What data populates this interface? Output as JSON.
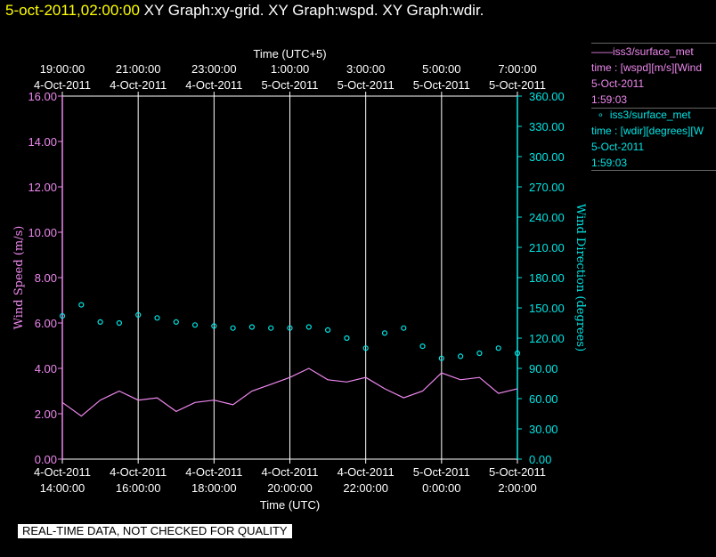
{
  "header": {
    "timestamp": "5-oct-2011,02:00:00",
    "titles": "XY Graph:xy-grid.  XY Graph:wspd.  XY Graph:wdir."
  },
  "legend": [
    {
      "marker": "——",
      "name": "iss3/surface_met",
      "desc": "time : [wspd][m/s][Wind",
      "date": "5-Oct-2011",
      "time": "1:59:03",
      "color": "#ee88ee"
    },
    {
      "marker": "∘",
      "name": "iss3/surface_met",
      "desc": "time : [wdir][degrees][W",
      "date": "5-Oct-2011",
      "time": "1:59:03",
      "color": "#00e5e5"
    }
  ],
  "qc_banner": "REAL-TIME DATA, NOT CHECKED FOR QUALITY",
  "chart_data": {
    "type": "line",
    "top_axis": {
      "label": "Time (UTC+5)",
      "ticks": [
        {
          "time": "19:00:00",
          "date": "4-Oct-2011"
        },
        {
          "time": "21:00:00",
          "date": "4-Oct-2011"
        },
        {
          "time": "23:00:00",
          "date": "4-Oct-2011"
        },
        {
          "time": "1:00:00",
          "date": "5-Oct-2011"
        },
        {
          "time": "3:00:00",
          "date": "5-Oct-2011"
        },
        {
          "time": "5:00:00",
          "date": "5-Oct-2011"
        },
        {
          "time": "7:00:00",
          "date": "5-Oct-2011"
        }
      ]
    },
    "bottom_axis": {
      "label": "Time (UTC)",
      "ticks": [
        {
          "date": "4-Oct-2011",
          "time": "14:00:00"
        },
        {
          "date": "4-Oct-2011",
          "time": "16:00:00"
        },
        {
          "date": "4-Oct-2011",
          "time": "18:00:00"
        },
        {
          "date": "4-Oct-2011",
          "time": "20:00:00"
        },
        {
          "date": "4-Oct-2011",
          "time": "22:00:00"
        },
        {
          "date": "5-Oct-2011",
          "time": "0:00:00"
        },
        {
          "date": "5-Oct-2011",
          "time": "2:00:00"
        }
      ],
      "range_utc": [
        "2011-10-04 14:00",
        "2011-10-05 02:00"
      ]
    },
    "left_axis": {
      "label": "Wind Speed (m/s)",
      "ylim": [
        0,
        16
      ],
      "ticks": [
        "0.00",
        "2.00",
        "4.00",
        "6.00",
        "8.00",
        "10.00",
        "12.00",
        "14.00",
        "16.00"
      ],
      "color": "#ee88ee"
    },
    "right_axis": {
      "label": "Wind Direction (degrees)",
      "ylim": [
        0,
        360
      ],
      "ticks": [
        "0.00",
        "30.00",
        "60.00",
        "90.00",
        "120.00",
        "150.00",
        "180.00",
        "210.00",
        "240.00",
        "270.00",
        "300.00",
        "330.00",
        "360.00"
      ],
      "color": "#00e5e5"
    },
    "grid": "vertical",
    "series": [
      {
        "name": "iss3/surface_met wspd",
        "style": "line",
        "color": "#ee88ee",
        "axis": "left",
        "x_utc": [
          "2011-10-04 14:00",
          "2011-10-04 14:30",
          "2011-10-04 15:00",
          "2011-10-04 15:30",
          "2011-10-04 16:00",
          "2011-10-04 16:30",
          "2011-10-04 17:00",
          "2011-10-04 17:30",
          "2011-10-04 18:00",
          "2011-10-04 18:30",
          "2011-10-04 19:00",
          "2011-10-04 19:30",
          "2011-10-04 20:00",
          "2011-10-04 20:30",
          "2011-10-04 21:00",
          "2011-10-04 21:30",
          "2011-10-04 22:00",
          "2011-10-04 22:30",
          "2011-10-04 23:00",
          "2011-10-04 23:30",
          "2011-10-05 00:00",
          "2011-10-05 00:30",
          "2011-10-05 01:00",
          "2011-10-05 01:30",
          "2011-10-05 02:00"
        ],
        "values": [
          2.5,
          1.9,
          2.6,
          3.0,
          2.6,
          2.7,
          2.1,
          2.5,
          2.6,
          2.4,
          3.0,
          3.3,
          3.6,
          4.0,
          3.5,
          3.4,
          3.6,
          3.1,
          2.7,
          3.0,
          3.8,
          3.5,
          3.6,
          2.9,
          3.1
        ]
      },
      {
        "name": "iss3/surface_met wdir",
        "style": "markers",
        "color": "#00e5e5",
        "axis": "right",
        "x_utc": [
          "2011-10-04 14:00",
          "2011-10-04 14:30",
          "2011-10-04 15:00",
          "2011-10-04 15:30",
          "2011-10-04 16:00",
          "2011-10-04 16:30",
          "2011-10-04 17:00",
          "2011-10-04 17:30",
          "2011-10-04 18:00",
          "2011-10-04 18:30",
          "2011-10-04 19:00",
          "2011-10-04 19:30",
          "2011-10-04 20:00",
          "2011-10-04 20:30",
          "2011-10-04 21:00",
          "2011-10-04 21:30",
          "2011-10-04 22:00",
          "2011-10-04 22:30",
          "2011-10-04 23:00",
          "2011-10-04 23:30",
          "2011-10-05 00:00",
          "2011-10-05 00:30",
          "2011-10-05 01:00",
          "2011-10-05 01:30",
          "2011-10-05 02:00"
        ],
        "values": [
          142,
          153,
          136,
          135,
          143,
          140,
          136,
          133,
          132,
          130,
          131,
          130,
          130,
          131,
          128,
          120,
          110,
          125,
          130,
          112,
          100,
          102,
          105,
          110,
          105
        ]
      }
    ]
  }
}
